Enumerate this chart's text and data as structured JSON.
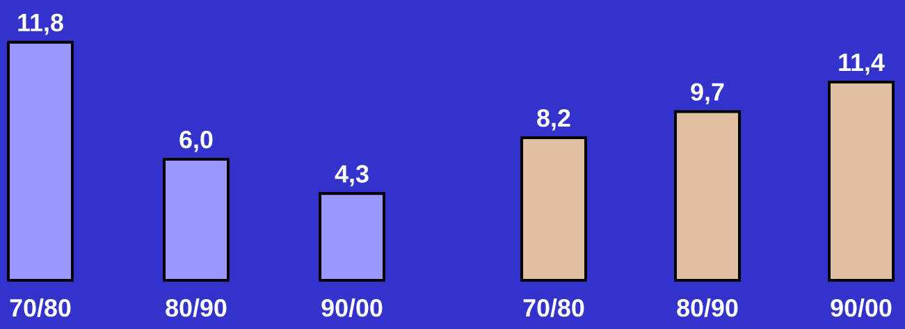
{
  "chart_data": [
    {
      "type": "bar",
      "categories": [
        "70/80",
        "80/90",
        "90/00"
      ],
      "values": [
        11.8,
        6.0,
        4.3
      ],
      "color": "#9999ff",
      "value_labels": [
        "11,8",
        "6,0",
        "4,3"
      ]
    },
    {
      "type": "bar",
      "categories": [
        "70/80",
        "80/90",
        "90/00"
      ],
      "values": [
        8.2,
        9.7,
        11.4
      ],
      "color": "#e0c0a0",
      "value_labels": [
        "8,2",
        "9,7",
        "11,4"
      ]
    }
  ]
}
